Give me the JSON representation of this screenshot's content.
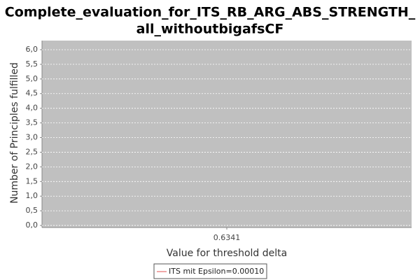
{
  "chart_data": {
    "type": "line",
    "title": [
      "Complete_evaluation_for_ITS_RB_ARG_ABS_STRENGTH_",
      "all_withoutbigafsCF"
    ],
    "x_label": "Value for threshold delta",
    "y_label": "Number of Principles fulfilled",
    "categories": [
      "0.6341"
    ],
    "series": [
      {
        "name": "ITS mit Epsilon=0.00010",
        "color": "#e05050",
        "values": [
          null
        ]
      }
    ],
    "ylim": [
      -0.07,
      6.31
    ],
    "yticks": [
      {
        "value": 0,
        "label": "0,0"
      },
      {
        "value": 0.5,
        "label": "0,5"
      },
      {
        "value": 1,
        "label": "1,0"
      },
      {
        "value": 1.5,
        "label": "1,5"
      },
      {
        "value": 2,
        "label": "2,0"
      },
      {
        "value": 2.5,
        "label": "2,5"
      },
      {
        "value": 3,
        "label": "3,0"
      },
      {
        "value": 3.5,
        "label": "3,5"
      },
      {
        "value": 4,
        "label": "4,0"
      },
      {
        "value": 4.5,
        "label": "4,5"
      },
      {
        "value": 5,
        "label": "5,0"
      },
      {
        "value": 5.5,
        "label": "5,5"
      },
      {
        "value": 6,
        "label": "6,0"
      }
    ],
    "grid": true
  }
}
